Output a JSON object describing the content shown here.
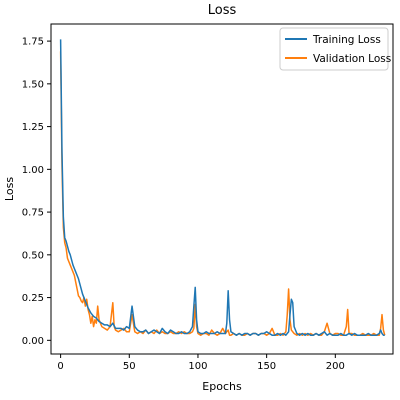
{
  "chart_data": {
    "type": "line",
    "title": "Loss",
    "xlabel": "Epochs",
    "ylabel": "Loss",
    "xlim": [
      -7,
      242
    ],
    "ylim": [
      -0.08,
      1.85
    ],
    "xticks": [
      0,
      50,
      100,
      150,
      200
    ],
    "yticks": [
      0.0,
      0.25,
      0.5,
      0.75,
      1.0,
      1.25,
      1.5,
      1.75
    ],
    "ytick_labels": [
      "0.00",
      "0.25",
      "0.50",
      "0.75",
      "1.00",
      "1.25",
      "1.50",
      "1.75"
    ],
    "grid": false,
    "legend_position": "top-right",
    "series": [
      {
        "name": "Training Loss",
        "color": "#1f77b4",
        "x": [
          0,
          1,
          2,
          3,
          4,
          5,
          6,
          7,
          8,
          9,
          10,
          11,
          12,
          13,
          14,
          15,
          16,
          17,
          18,
          19,
          20,
          22,
          24,
          26,
          28,
          30,
          32,
          34,
          36,
          38,
          40,
          42,
          44,
          46,
          48,
          50,
          52,
          54,
          56,
          58,
          60,
          62,
          64,
          66,
          68,
          70,
          72,
          74,
          76,
          78,
          80,
          82,
          84,
          86,
          88,
          90,
          92,
          94,
          96,
          97,
          98,
          99,
          100,
          102,
          104,
          106,
          108,
          110,
          112,
          114,
          116,
          118,
          120,
          121,
          122,
          123,
          124,
          126,
          128,
          130,
          132,
          134,
          136,
          138,
          140,
          142,
          144,
          146,
          148,
          150,
          152,
          154,
          156,
          158,
          160,
          162,
          164,
          166,
          167,
          168,
          169,
          170,
          172,
          174,
          176,
          178,
          180,
          182,
          184,
          186,
          188,
          190,
          192,
          194,
          196,
          198,
          200,
          202,
          204,
          206,
          208,
          210,
          212,
          214,
          216,
          218,
          220,
          222,
          224,
          226,
          228,
          230,
          232,
          233,
          234,
          235,
          236
        ],
        "y": [
          1.76,
          1.1,
          0.72,
          0.6,
          0.58,
          0.55,
          0.52,
          0.5,
          0.47,
          0.44,
          0.42,
          0.4,
          0.38,
          0.36,
          0.33,
          0.3,
          0.27,
          0.25,
          0.23,
          0.21,
          0.19,
          0.16,
          0.14,
          0.13,
          0.11,
          0.1,
          0.09,
          0.09,
          0.08,
          0.1,
          0.07,
          0.07,
          0.07,
          0.06,
          0.08,
          0.07,
          0.2,
          0.08,
          0.06,
          0.05,
          0.05,
          0.06,
          0.04,
          0.05,
          0.06,
          0.05,
          0.04,
          0.07,
          0.05,
          0.04,
          0.06,
          0.05,
          0.04,
          0.04,
          0.05,
          0.04,
          0.04,
          0.05,
          0.08,
          0.2,
          0.31,
          0.12,
          0.05,
          0.04,
          0.04,
          0.05,
          0.04,
          0.04,
          0.04,
          0.05,
          0.04,
          0.04,
          0.04,
          0.1,
          0.29,
          0.12,
          0.05,
          0.04,
          0.03,
          0.04,
          0.03,
          0.04,
          0.04,
          0.03,
          0.04,
          0.04,
          0.03,
          0.04,
          0.04,
          0.05,
          0.04,
          0.03,
          0.03,
          0.04,
          0.03,
          0.04,
          0.03,
          0.05,
          0.15,
          0.24,
          0.22,
          0.08,
          0.04,
          0.03,
          0.04,
          0.03,
          0.04,
          0.03,
          0.03,
          0.04,
          0.03,
          0.04,
          0.05,
          0.03,
          0.04,
          0.03,
          0.03,
          0.03,
          0.04,
          0.03,
          0.03,
          0.04,
          0.03,
          0.04,
          0.03,
          0.03,
          0.03,
          0.03,
          0.04,
          0.03,
          0.03,
          0.03,
          0.04,
          0.06,
          0.04,
          0.03,
          0.03
        ]
      },
      {
        "name": "Validation Loss",
        "color": "#ff7f0e",
        "x": [
          0,
          1,
          2,
          3,
          4,
          5,
          6,
          7,
          8,
          9,
          10,
          11,
          12,
          13,
          14,
          15,
          16,
          17,
          18,
          19,
          20,
          21,
          22,
          23,
          24,
          25,
          26,
          27,
          28,
          30,
          32,
          34,
          36,
          37,
          38,
          39,
          40,
          42,
          44,
          46,
          48,
          50,
          52,
          54,
          56,
          58,
          60,
          62,
          64,
          66,
          68,
          70,
          72,
          74,
          76,
          78,
          80,
          82,
          84,
          86,
          88,
          90,
          92,
          94,
          96,
          97,
          98,
          99,
          100,
          102,
          104,
          106,
          108,
          110,
          112,
          114,
          116,
          118,
          120,
          122,
          123,
          124,
          126,
          128,
          130,
          132,
          134,
          136,
          138,
          140,
          142,
          144,
          146,
          148,
          150,
          152,
          154,
          156,
          158,
          160,
          162,
          164,
          165,
          166,
          167,
          168,
          170,
          172,
          174,
          176,
          178,
          180,
          182,
          184,
          186,
          188,
          190,
          192,
          194,
          196,
          198,
          200,
          202,
          204,
          206,
          208,
          209,
          210,
          212,
          214,
          216,
          218,
          220,
          222,
          224,
          226,
          228,
          230,
          232,
          233,
          234,
          235,
          236
        ],
        "y": [
          1.69,
          1.02,
          0.66,
          0.57,
          0.54,
          0.48,
          0.46,
          0.44,
          0.42,
          0.4,
          0.38,
          0.34,
          0.3,
          0.26,
          0.25,
          0.23,
          0.22,
          0.25,
          0.2,
          0.24,
          0.18,
          0.15,
          0.1,
          0.14,
          0.08,
          0.12,
          0.1,
          0.2,
          0.12,
          0.08,
          0.07,
          0.06,
          0.08,
          0.15,
          0.22,
          0.08,
          0.06,
          0.05,
          0.06,
          0.07,
          0.05,
          0.05,
          0.15,
          0.05,
          0.04,
          0.05,
          0.04,
          0.06,
          0.04,
          0.05,
          0.04,
          0.06,
          0.04,
          0.05,
          0.04,
          0.04,
          0.05,
          0.04,
          0.04,
          0.05,
          0.04,
          0.05,
          0.04,
          0.04,
          0.05,
          0.07,
          0.21,
          0.08,
          0.04,
          0.03,
          0.04,
          0.04,
          0.03,
          0.06,
          0.04,
          0.03,
          0.04,
          0.07,
          0.04,
          0.06,
          0.03,
          0.03,
          0.04,
          0.03,
          0.04,
          0.03,
          0.03,
          0.04,
          0.03,
          0.04,
          0.04,
          0.03,
          0.04,
          0.04,
          0.03,
          0.04,
          0.07,
          0.03,
          0.03,
          0.04,
          0.03,
          0.05,
          0.15,
          0.3,
          0.12,
          0.06,
          0.04,
          0.03,
          0.04,
          0.03,
          0.04,
          0.03,
          0.04,
          0.03,
          0.04,
          0.03,
          0.03,
          0.05,
          0.1,
          0.04,
          0.03,
          0.04,
          0.04,
          0.03,
          0.03,
          0.08,
          0.18,
          0.04,
          0.04,
          0.03,
          0.03,
          0.03,
          0.04,
          0.03,
          0.03,
          0.03,
          0.04,
          0.03,
          0.03,
          0.07,
          0.15,
          0.06,
          0.03
        ]
      }
    ]
  }
}
